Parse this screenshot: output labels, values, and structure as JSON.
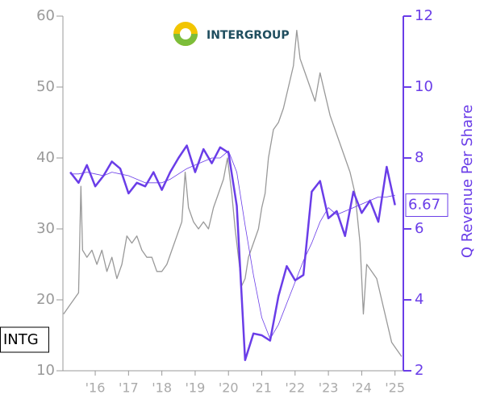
{
  "chart_data": {
    "type": "line",
    "logo_text": "INTERGROUP",
    "ticker": "INTG",
    "y2_label": "Q Revenue Per Share",
    "xlim": [
      2015.03,
      2025.25
    ],
    "xticks": [
      {
        "value": 2016,
        "label": "'16"
      },
      {
        "value": 2017,
        "label": "'17"
      },
      {
        "value": 2018,
        "label": "'18"
      },
      {
        "value": 2019,
        "label": "'19"
      },
      {
        "value": 2020,
        "label": "'20"
      },
      {
        "value": 2021,
        "label": "'21"
      },
      {
        "value": 2022,
        "label": "'22"
      },
      {
        "value": 2023,
        "label": "'23"
      },
      {
        "value": 2024,
        "label": "'24"
      },
      {
        "value": 2025,
        "label": "'25"
      }
    ],
    "ylim": [
      10,
      60
    ],
    "yticks": [
      10,
      20,
      30,
      40,
      50,
      60
    ],
    "y2lim": [
      2,
      12
    ],
    "y2ticks": [
      2,
      4,
      6,
      8,
      10,
      12
    ],
    "series": [
      {
        "color": "#999999",
        "axis": "y",
        "x": [
          2015.05,
          2015.2,
          2015.35,
          2015.5,
          2015.57,
          2015.62,
          2015.75,
          2015.9,
          2016.05,
          2016.2,
          2016.35,
          2016.5,
          2016.65,
          2016.8,
          2016.95,
          2017.1,
          2017.25,
          2017.4,
          2017.55,
          2017.7,
          2017.85,
          2018.0,
          2018.15,
          2018.3,
          2018.45,
          2018.6,
          2018.7,
          2018.8,
          2018.95,
          2019.1,
          2019.25,
          2019.4,
          2019.55,
          2019.7,
          2019.85,
          2019.97,
          2020.1,
          2020.2,
          2020.3,
          2020.4,
          2020.5,
          2020.6,
          2020.75,
          2020.9,
          2021.0,
          2021.1,
          2021.2,
          2021.35,
          2021.5,
          2021.65,
          2021.8,
          2021.95,
          2022.05,
          2022.15,
          2022.3,
          2022.45,
          2022.6,
          2022.75,
          2022.9,
          2023.05,
          2023.2,
          2023.35,
          2023.5,
          2023.65,
          2023.8,
          2023.95,
          2024.05,
          2024.15,
          2024.3,
          2024.45,
          2024.6,
          2024.75,
          2024.9,
          2025.05,
          2025.2
        ],
        "values": [
          18,
          19,
          20,
          21,
          36,
          27,
          26,
          27,
          25,
          27,
          24,
          26,
          23,
          25,
          29,
          28,
          29,
          27,
          26,
          26,
          24,
          24,
          25,
          27,
          29,
          31,
          38,
          33,
          31,
          30,
          31,
          30,
          33,
          35,
          37,
          40,
          35,
          30,
          26,
          22,
          23,
          26,
          28,
          30,
          33,
          35,
          40,
          44,
          45,
          47,
          50,
          53,
          58,
          54,
          52,
          50,
          48,
          52,
          49,
          46,
          44,
          42,
          40,
          38,
          35,
          28,
          18,
          25,
          24,
          23,
          20,
          17,
          14,
          13,
          12
        ]
      },
      {
        "color": "#6a3de8",
        "axis": "y2",
        "x": [
          2015.25,
          2015.5,
          2015.75,
          2016.0,
          2016.25,
          2016.5,
          2016.75,
          2017.0,
          2017.25,
          2017.5,
          2017.75,
          2018.0,
          2018.25,
          2018.5,
          2018.75,
          2019.0,
          2019.25,
          2019.5,
          2019.75,
          2020.0,
          2020.25,
          2020.5,
          2020.75,
          2021.0,
          2021.25,
          2021.5,
          2021.75,
          2022.0,
          2022.25,
          2022.5,
          2022.75,
          2023.0,
          2023.25,
          2023.5,
          2023.75,
          2024.0,
          2024.25,
          2024.5,
          2024.75,
          2025.0
        ],
        "values": [
          7.6,
          7.3,
          7.8,
          7.2,
          7.5,
          7.9,
          7.7,
          7.0,
          7.3,
          7.2,
          7.6,
          7.1,
          7.6,
          8.0,
          8.35,
          7.6,
          8.25,
          7.85,
          8.3,
          8.15,
          6.65,
          2.3,
          3.05,
          3.0,
          2.85,
          4.1,
          4.95,
          4.55,
          4.7,
          7.05,
          7.35,
          6.3,
          6.5,
          5.8,
          7.05,
          6.45,
          6.8,
          6.2,
          7.75,
          6.67
        ]
      },
      {
        "color": "#6a3de8",
        "axis": "y2",
        "x": [
          2015.25,
          2015.5,
          2015.75,
          2016.0,
          2016.25,
          2016.5,
          2016.75,
          2017.0,
          2017.25,
          2017.5,
          2017.75,
          2018.0,
          2018.25,
          2018.5,
          2018.75,
          2019.0,
          2019.25,
          2019.5,
          2019.75,
          2020.0,
          2020.25,
          2020.5,
          2020.75,
          2021.0,
          2021.25,
          2021.5,
          2021.75,
          2022.0,
          2022.25,
          2022.5,
          2022.75,
          2023.0,
          2023.25,
          2023.5,
          2023.75,
          2024.0,
          2024.25,
          2024.5,
          2024.75,
          2025.0
        ],
        "values": [
          7.55,
          7.55,
          7.6,
          7.55,
          7.5,
          7.6,
          7.55,
          7.5,
          7.4,
          7.3,
          7.3,
          7.3,
          7.4,
          7.55,
          7.7,
          7.8,
          7.9,
          8.0,
          8.0,
          8.2,
          7.6,
          6.1,
          4.7,
          3.5,
          2.9,
          3.3,
          3.9,
          4.5,
          5.1,
          5.6,
          6.2,
          6.6,
          6.4,
          6.5,
          6.6,
          6.7,
          6.8,
          6.9,
          6.9,
          6.95
        ]
      }
    ]
  }
}
